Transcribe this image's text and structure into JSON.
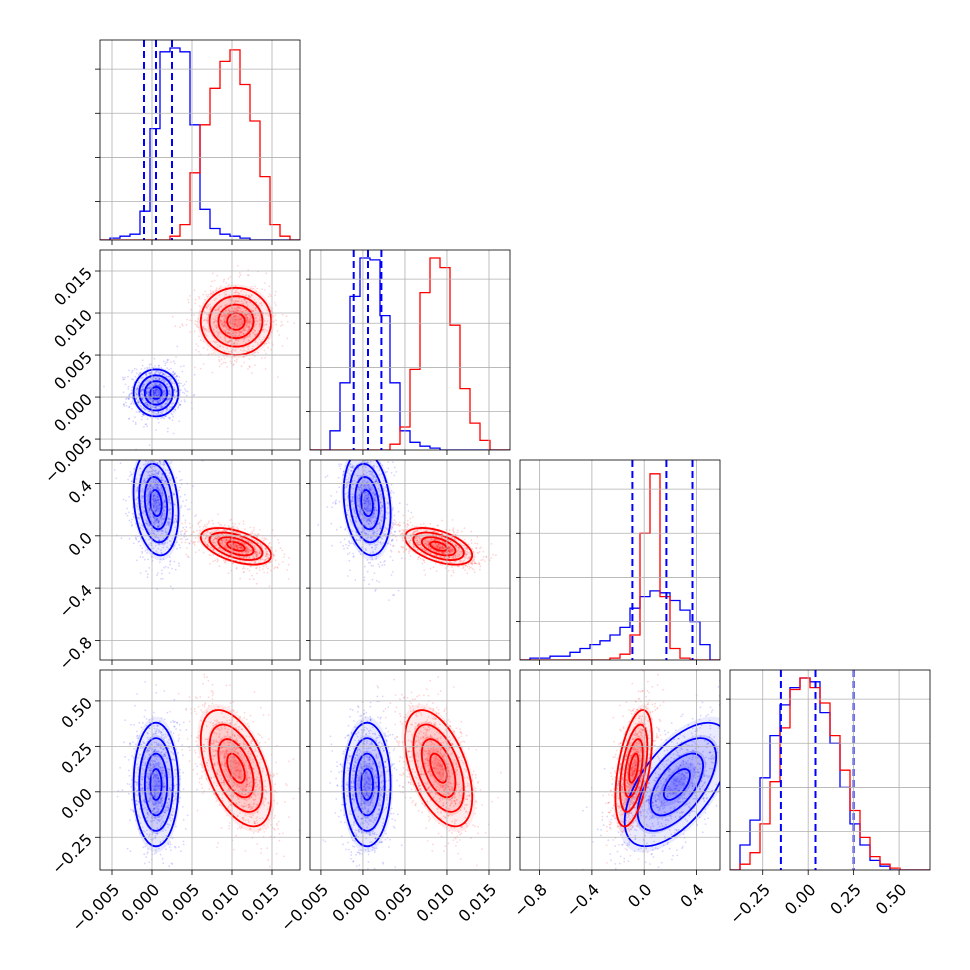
{
  "chart_data": {
    "type": "corner",
    "title": "",
    "parameters": [
      {
        "range": [
          -0.0065,
          0.0185
        ],
        "ticks": [
          -0.005,
          0.0,
          0.005,
          0.01,
          0.015
        ],
        "tick_labels": [
          "−0.005",
          "0.000",
          "0.005",
          "0.010",
          "0.015"
        ]
      },
      {
        "range": [
          -0.0063,
          0.0175
        ],
        "ticks": [
          -0.005,
          0.0,
          0.005,
          0.01,
          0.015
        ],
        "tick_labels": [
          "−0.005",
          "0.000",
          "0.005",
          "0.010",
          "0.015"
        ]
      },
      {
        "range": [
          -0.95,
          0.58
        ],
        "ticks": [
          -0.8,
          -0.4,
          0.0,
          0.4
        ],
        "tick_labels": [
          "−0.8",
          "−0.4",
          "0.0",
          "0.4"
        ]
      },
      {
        "range": [
          -0.43,
          0.67
        ],
        "ticks": [
          -0.25,
          0.0,
          0.25,
          0.5
        ],
        "tick_labels": [
          "−0.25",
          "0.00",
          "0.25",
          "0.50"
        ]
      }
    ],
    "series": [
      {
        "color": "#0000ff",
        "means": [
          0.0005,
          0.0005,
          0.25,
          0.04
        ],
        "sds": [
          0.0014,
          0.0014,
          0.2,
          0.17
        ],
        "correlations": {
          "0-2": -0.2,
          "1-2": -0.2,
          "2-3": 0.6
        },
        "quantiles_16_50_84": [
          [
            -0.001,
            0.0005,
            0.0025
          ],
          [
            -0.0011,
            0.0006,
            0.0022
          ],
          [
            -0.09,
            0.17,
            0.37
          ],
          [
            -0.15,
            0.04,
            0.25
          ]
        ],
        "histograms": [
          [
            0.0,
            0.01,
            0.02,
            0.03,
            0.15,
            0.58,
            0.98,
            1.0,
            0.98,
            0.6,
            0.16,
            0.06,
            0.03,
            0.02,
            0.01,
            0.0,
            0.0,
            0.0,
            0.0,
            0.0
          ],
          [
            0.0,
            0.0,
            0.1,
            0.35,
            0.8,
            1.0,
            0.99,
            0.7,
            0.35,
            0.1,
            0.04,
            0.02,
            0.01,
            0.0,
            0.0,
            0.0,
            0.0,
            0.0,
            0.0,
            0.0
          ],
          [
            0.0,
            0.01,
            0.01,
            0.02,
            0.02,
            0.04,
            0.06,
            0.08,
            0.1,
            0.13,
            0.17,
            0.27,
            0.33,
            0.36,
            0.35,
            0.31,
            0.26,
            0.2,
            0.08,
            0.0
          ],
          [
            0.0,
            0.13,
            0.26,
            0.48,
            0.7,
            0.86,
            0.95,
            1.0,
            0.98,
            0.82,
            0.66,
            0.43,
            0.24,
            0.13,
            0.05,
            0.02,
            0.0,
            0.0,
            0.0,
            0.0
          ]
        ]
      },
      {
        "color": "#ff0000",
        "means": [
          0.0105,
          0.009,
          -0.08,
          0.13
        ],
        "sds": [
          0.0022,
          0.002,
          0.07,
          0.16
        ],
        "correlations": {
          "0-2": -0.5,
          "1-2": -0.5,
          "0-3": -0.5,
          "1-3": -0.5,
          "2-3": 0.5
        },
        "histograms": [
          [
            0.0,
            0.0,
            0.0,
            0.0,
            0.0,
            0.0,
            0.0,
            0.02,
            0.08,
            0.35,
            0.6,
            0.79,
            0.93,
            0.99,
            0.81,
            0.62,
            0.33,
            0.08,
            0.02,
            0.0
          ],
          [
            0.0,
            0.0,
            0.0,
            0.0,
            0.0,
            0.0,
            0.0,
            0.0,
            0.03,
            0.12,
            0.42,
            0.82,
            1.0,
            0.95,
            0.65,
            0.32,
            0.14,
            0.05,
            0.0,
            0.0
          ],
          [
            0.0,
            0.0,
            0.0,
            0.0,
            0.0,
            0.0,
            0.0,
            0.0,
            0.0,
            0.01,
            0.03,
            0.13,
            0.66,
            0.97,
            0.33,
            0.06,
            0.01,
            0.0,
            0.0,
            0.0
          ],
          [
            0.0,
            0.03,
            0.09,
            0.24,
            0.46,
            0.74,
            0.94,
            1.0,
            0.95,
            0.87,
            0.7,
            0.52,
            0.31,
            0.17,
            0.07,
            0.03,
            0.01,
            0.0,
            0.0,
            0.0
          ]
        ]
      }
    ],
    "contour_levels_sigma": [
      0.5,
      1.0,
      1.5,
      2.0
    ],
    "grid": true,
    "legend": "none"
  }
}
